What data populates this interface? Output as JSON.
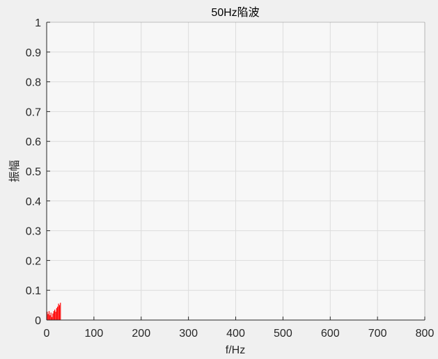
{
  "chart_data": {
    "type": "bar",
    "title": "50Hz陷波",
    "xlabel": "f/Hz",
    "ylabel": "振幅",
    "xlim": [
      0,
      800
    ],
    "ylim": [
      0,
      1
    ],
    "xticks": [
      0,
      100,
      200,
      300,
      400,
      500,
      600,
      700,
      800
    ],
    "yticks": [
      0,
      0.1,
      0.2,
      0.3,
      0.4,
      0.5,
      0.6,
      0.7,
      0.8,
      0.9,
      1
    ],
    "grid": true,
    "series": [
      {
        "color": "#ff0000",
        "x": [
          1,
          3,
          5,
          7,
          9,
          11,
          13,
          15,
          17,
          19,
          21,
          23,
          25,
          27,
          29
        ],
        "values": [
          0.028,
          0.02,
          0.03,
          0.016,
          0.025,
          0.01,
          0.022,
          0.03,
          0.035,
          0.028,
          0.04,
          0.045,
          0.055,
          0.05,
          0.058
        ]
      }
    ]
  },
  "colors": {
    "axes_background": "#f7f7f7",
    "figure_background": "#f0f0f0",
    "grid": "#dcdcdc",
    "axis": "#262626"
  }
}
